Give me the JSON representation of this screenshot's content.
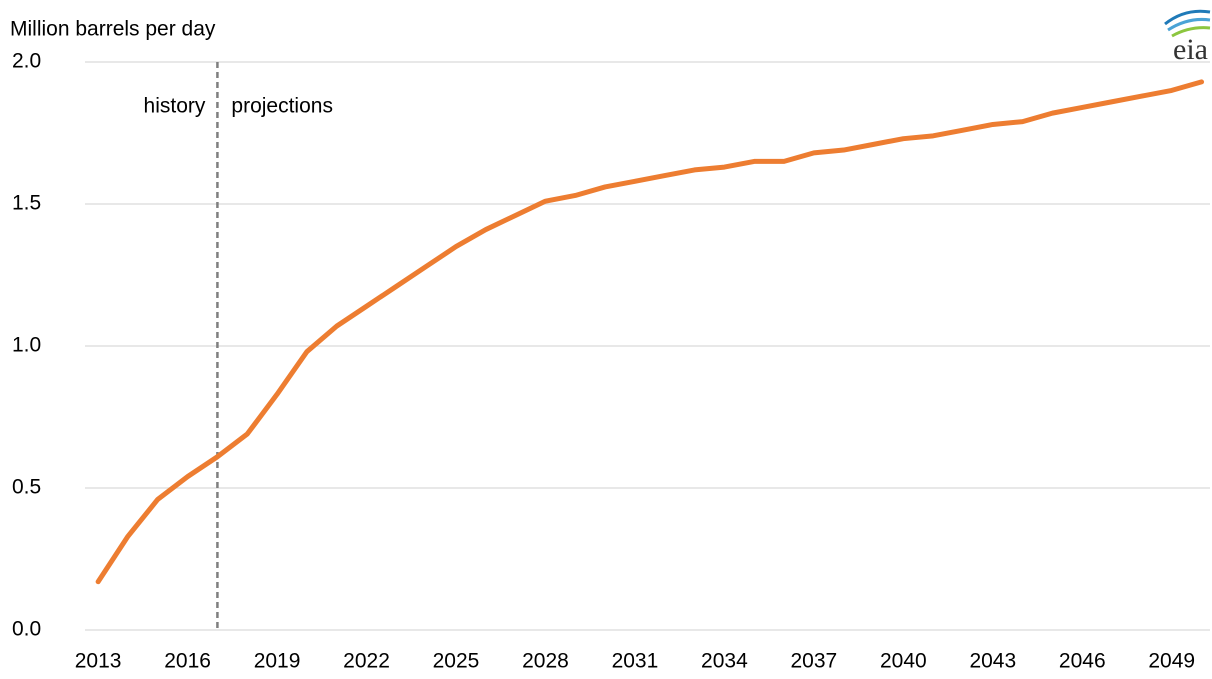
{
  "chart_data": {
    "type": "line",
    "y_axis_label": "Million barrels per day",
    "logo": "eia",
    "x": [
      2013,
      2014,
      2015,
      2016,
      2017,
      2018,
      2019,
      2020,
      2021,
      2022,
      2023,
      2024,
      2025,
      2026,
      2027,
      2028,
      2029,
      2030,
      2031,
      2032,
      2033,
      2034,
      2035,
      2036,
      2037,
      2038,
      2039,
      2040,
      2041,
      2042,
      2043,
      2044,
      2045,
      2046,
      2047,
      2048,
      2049,
      2050
    ],
    "values": [
      0.17,
      0.33,
      0.46,
      0.54,
      0.61,
      0.69,
      0.83,
      0.98,
      1.07,
      1.14,
      1.21,
      1.28,
      1.35,
      1.41,
      1.46,
      1.51,
      1.53,
      1.56,
      1.58,
      1.6,
      1.62,
      1.63,
      1.65,
      1.65,
      1.68,
      1.69,
      1.71,
      1.73,
      1.74,
      1.76,
      1.78,
      1.79,
      1.82,
      1.84,
      1.86,
      1.88,
      1.9,
      1.93
    ],
    "color": "#ed7d31",
    "xlim": [
      2012.56,
      2050.35
    ],
    "xticks": [
      2013,
      2016,
      2019,
      2022,
      2025,
      2028,
      2031,
      2034,
      2037,
      2040,
      2043,
      2046,
      2049
    ],
    "ylim": [
      0,
      2
    ],
    "yticks": [
      {
        "value": 0,
        "label": "0.0"
      },
      0.5,
      {
        "value": 1,
        "label": "1.0"
      },
      1.5,
      {
        "value": 2,
        "label": "2.0"
      }
    ],
    "grid": true,
    "divider": 2017,
    "annotations": [
      "history",
      "projections"
    ]
  }
}
